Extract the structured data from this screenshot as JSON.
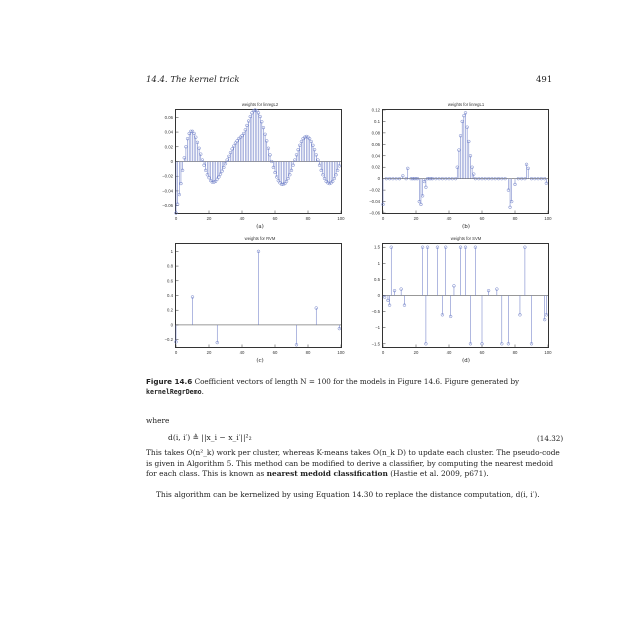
{
  "header": {
    "left": "14.4.  The kernel trick",
    "right": "491"
  },
  "panels": {
    "a": {
      "title": "weights for linregL2",
      "label": "(a)"
    },
    "b": {
      "title": "weights for linregL1",
      "label": "(b)"
    },
    "c": {
      "title": "weights for RVM",
      "label": "(c)"
    },
    "d": {
      "title": "weights for SVM",
      "label": "(d)"
    }
  },
  "caption": {
    "figure": "Figure 14.6",
    "text": "Coefficient vectors of length N = 100 for the models in Figure 14.6. Figure generated by",
    "code": "kernelRegrDemo",
    "end": "."
  },
  "body": {
    "where": "where",
    "equation": "d(i, i′) ≜ ||x_i − x_i′||²₂",
    "equation_number": "(14.32)",
    "para1_a": "This takes O(n²_k) work per cluster, whereas K-means takes O(n_k D) to update each cluster. The pseudo-code is given in Algorithm 5. This method can be modified to derive a classifier, by computing the nearest medoid for each class. This is known as",
    "para1_bold": "nearest medoid classification",
    "para1_b": "(Hastie et al. 2009, p671).",
    "para2": "This algorithm can be kernelized by using Equation 14.30 to replace the distance computation, d(i, i′)."
  },
  "chart_data": [
    {
      "type": "stem",
      "title": "weights for linregL2",
      "xlim": [
        0,
        100
      ],
      "ylim": [
        -0.07,
        0.07
      ],
      "xticks": [
        0,
        20,
        40,
        60,
        80,
        100
      ],
      "yticks": [
        -0.06,
        -0.04,
        -0.02,
        0,
        0.02,
        0.04,
        0.06
      ],
      "ytick_labels": [
        "−0.06",
        "−0.04",
        "−0.02",
        "0",
        "0.02",
        "0.04",
        "0.06"
      ],
      "x": [
        0,
        1,
        2,
        3,
        4,
        5,
        6,
        7,
        8,
        9,
        10,
        11,
        12,
        13,
        14,
        15,
        16,
        17,
        18,
        19,
        20,
        21,
        22,
        23,
        24,
        25,
        26,
        27,
        28,
        29,
        30,
        31,
        32,
        33,
        34,
        35,
        36,
        37,
        38,
        39,
        40,
        41,
        42,
        43,
        44,
        45,
        46,
        47,
        48,
        49,
        50,
        51,
        52,
        53,
        54,
        55,
        56,
        57,
        58,
        59,
        60,
        61,
        62,
        63,
        64,
        65,
        66,
        67,
        68,
        69,
        70,
        71,
        72,
        73,
        74,
        75,
        76,
        77,
        78,
        79,
        80,
        81,
        82,
        83,
        84,
        85,
        86,
        87,
        88,
        89,
        90,
        91,
        92,
        93,
        94,
        95,
        96,
        97,
        98,
        99
      ],
      "values": [
        -0.07,
        -0.058,
        -0.045,
        -0.03,
        -0.012,
        0.005,
        0.02,
        0.031,
        0.038,
        0.041,
        0.041,
        0.038,
        0.033,
        0.026,
        0.018,
        0.01,
        0.002,
        -0.005,
        -0.012,
        -0.018,
        -0.022,
        -0.026,
        -0.028,
        -0.028,
        -0.027,
        -0.024,
        -0.021,
        -0.017,
        -0.013,
        -0.008,
        -0.003,
        0.002,
        0.007,
        0.012,
        0.017,
        0.021,
        0.025,
        0.028,
        0.031,
        0.033,
        0.035,
        0.038,
        0.043,
        0.049,
        0.055,
        0.061,
        0.066,
        0.069,
        0.07,
        0.069,
        0.066,
        0.061,
        0.054,
        0.046,
        0.037,
        0.028,
        0.018,
        0.009,
        0.0,
        -0.008,
        -0.015,
        -0.021,
        -0.026,
        -0.029,
        -0.031,
        -0.031,
        -0.03,
        -0.027,
        -0.023,
        -0.018,
        -0.012,
        -0.005,
        0.002,
        0.009,
        0.016,
        0.022,
        0.027,
        0.031,
        0.033,
        0.034,
        0.033,
        0.031,
        0.027,
        0.022,
        0.016,
        0.009,
        0.002,
        -0.005,
        -0.012,
        -0.018,
        -0.023,
        -0.027,
        -0.029,
        -0.03,
        -0.029,
        -0.027,
        -0.023,
        -0.018,
        -0.012,
        -0.006
      ]
    },
    {
      "type": "stem",
      "title": "weights for linregL1",
      "xlim": [
        0,
        100
      ],
      "ylim": [
        -0.06,
        0.12
      ],
      "xticks": [
        0,
        20,
        40,
        60,
        80,
        100
      ],
      "yticks": [
        -0.06,
        -0.04,
        -0.02,
        0,
        0.02,
        0.04,
        0.06,
        0.08,
        0.1,
        0.12
      ],
      "ytick_labels": [
        "−0.06",
        "−0.04",
        "−0.02",
        "0",
        "0.02",
        "0.04",
        "0.06",
        "0.08",
        "0.1",
        "0.12"
      ],
      "x": [
        0,
        2,
        4,
        6,
        8,
        10,
        12,
        14,
        15,
        17,
        18,
        19,
        20,
        21,
        22,
        23,
        24,
        25,
        26,
        27,
        28,
        29,
        30,
        32,
        34,
        36,
        38,
        40,
        42,
        44,
        45,
        46,
        47,
        48,
        49,
        50,
        51,
        52,
        53,
        54,
        55,
        56,
        58,
        60,
        62,
        64,
        66,
        68,
        70,
        72,
        74,
        76,
        77,
        78,
        80,
        82,
        84,
        86,
        87,
        88,
        90,
        92,
        94,
        96,
        98,
        99
      ],
      "values": [
        -0.045,
        0.0,
        0.0,
        0.0,
        0.0,
        0.0,
        0.005,
        0.0,
        0.018,
        0.0,
        0.0,
        0.0,
        0.0,
        0.0,
        -0.04,
        -0.045,
        -0.03,
        -0.005,
        -0.015,
        0.0,
        0.0,
        0.0,
        0.0,
        0.0,
        0.0,
        0.0,
        0.0,
        0.0,
        0.0,
        0.0,
        0.02,
        0.05,
        0.075,
        0.1,
        0.11,
        0.115,
        0.09,
        0.065,
        0.04,
        0.02,
        0.008,
        0.0,
        0.0,
        0.0,
        0.0,
        0.0,
        0.0,
        0.0,
        0.0,
        0.0,
        0.0,
        -0.02,
        -0.05,
        -0.04,
        -0.01,
        0.0,
        0.0,
        0.0,
        0.025,
        0.018,
        0.0,
        0.0,
        0.0,
        0.0,
        0.0,
        -0.008
      ]
    },
    {
      "type": "stem",
      "title": "weights for RVM",
      "xlim": [
        0,
        100
      ],
      "ylim": [
        -0.3,
        1.1
      ],
      "xticks": [
        0,
        20,
        40,
        60,
        80,
        100
      ],
      "yticks": [
        -0.2,
        0,
        0.2,
        0.4,
        0.6,
        0.8,
        1
      ],
      "ytick_labels": [
        "−0.2",
        "0",
        "0.2",
        "0.4",
        "0.6",
        "0.8",
        "1"
      ],
      "x": [
        0,
        10,
        25,
        50,
        73,
        85,
        99
      ],
      "values": [
        -0.23,
        0.38,
        -0.24,
        1.0,
        -0.27,
        0.23,
        -0.05
      ]
    },
    {
      "type": "stem",
      "title": "weights for SVM",
      "xlim": [
        0,
        100
      ],
      "ylim": [
        -1.6,
        1.6
      ],
      "xticks": [
        0,
        20,
        40,
        60,
        80,
        100
      ],
      "yticks": [
        -1.5,
        -1,
        -0.5,
        0,
        0.5,
        1,
        1.5
      ],
      "ytick_labels": [
        "−1.5",
        "−1",
        "−0.5",
        "0",
        "0.5",
        "1",
        "1.5"
      ],
      "x": [
        1,
        3,
        4,
        5,
        7,
        11,
        13,
        24,
        26,
        27,
        33,
        36,
        38,
        41,
        43,
        47,
        50,
        53,
        56,
        60,
        64,
        69,
        72,
        76,
        83,
        86,
        90,
        98,
        99
      ],
      "values": [
        -0.05,
        -0.15,
        -0.3,
        1.5,
        0.15,
        0.2,
        -0.3,
        1.5,
        -1.5,
        1.5,
        1.5,
        -0.6,
        1.5,
        -0.65,
        0.3,
        1.5,
        1.5,
        -1.5,
        1.5,
        -1.5,
        0.15,
        0.2,
        -1.5,
        -1.5,
        -0.6,
        1.5,
        -1.5,
        -0.75,
        -0.6
      ]
    }
  ]
}
